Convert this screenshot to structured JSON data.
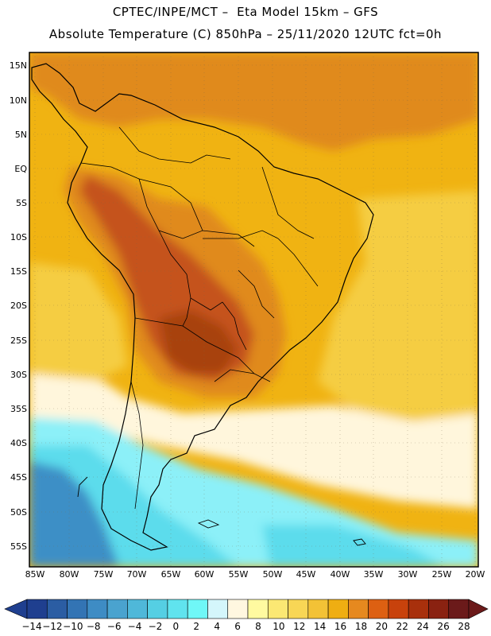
{
  "title_line1": "CPTEC/INPE/MCT –  Eta Model 15km – GFS",
  "title_line2": "Absolute Temperature (C) 850hPa – 25/11/2020 12UTC fct=0h",
  "lat_labels": [
    "15N",
    "10N",
    "5N",
    "EQ",
    "5S",
    "10S",
    "15S",
    "20S",
    "25S",
    "30S",
    "35S",
    "40S",
    "45S",
    "50S",
    "55S"
  ],
  "lon_labels": [
    "85W",
    "80W",
    "75W",
    "70W",
    "65W",
    "60W",
    "55W",
    "50W",
    "45W",
    "40W",
    "35W",
    "30W",
    "25W",
    "20W"
  ],
  "colorbar": {
    "labels": [
      "-14",
      "-12",
      "-10",
      "-8",
      "-6",
      "-4",
      "-2",
      "0",
      "2",
      "4",
      "6",
      "8",
      "10",
      "12",
      "14",
      "16",
      "18",
      "20",
      "22",
      "24",
      "26",
      "28"
    ],
    "colors": [
      "#1f3f8f",
      "#2b5da3",
      "#3374b4",
      "#3e8cc4",
      "#4aa3cf",
      "#4fb8d9",
      "#55cfe3",
      "#60e3ee",
      "#6ff7f7",
      "#d4f6fb",
      "#fff7e0",
      "#fffaa0",
      "#fbe873",
      "#f8d655",
      "#f3c236",
      "#efae12",
      "#e6891f",
      "#dd6012",
      "#c8420c",
      "#a8300c",
      "#8a2211",
      "#6b1a1a"
    ]
  },
  "map": {
    "colors": {
      "ocean_warm": "#f0b312",
      "ocean_mid": "#f5cd43",
      "cream": "#fff6dc",
      "light_cyan": "#8cf0f8",
      "cyan": "#5cdcec",
      "blue": "#3c8fc6",
      "orange": "#e08a1e",
      "dark_orange": "#c5531a",
      "brown": "#a8420f",
      "border": "#000000"
    }
  }
}
